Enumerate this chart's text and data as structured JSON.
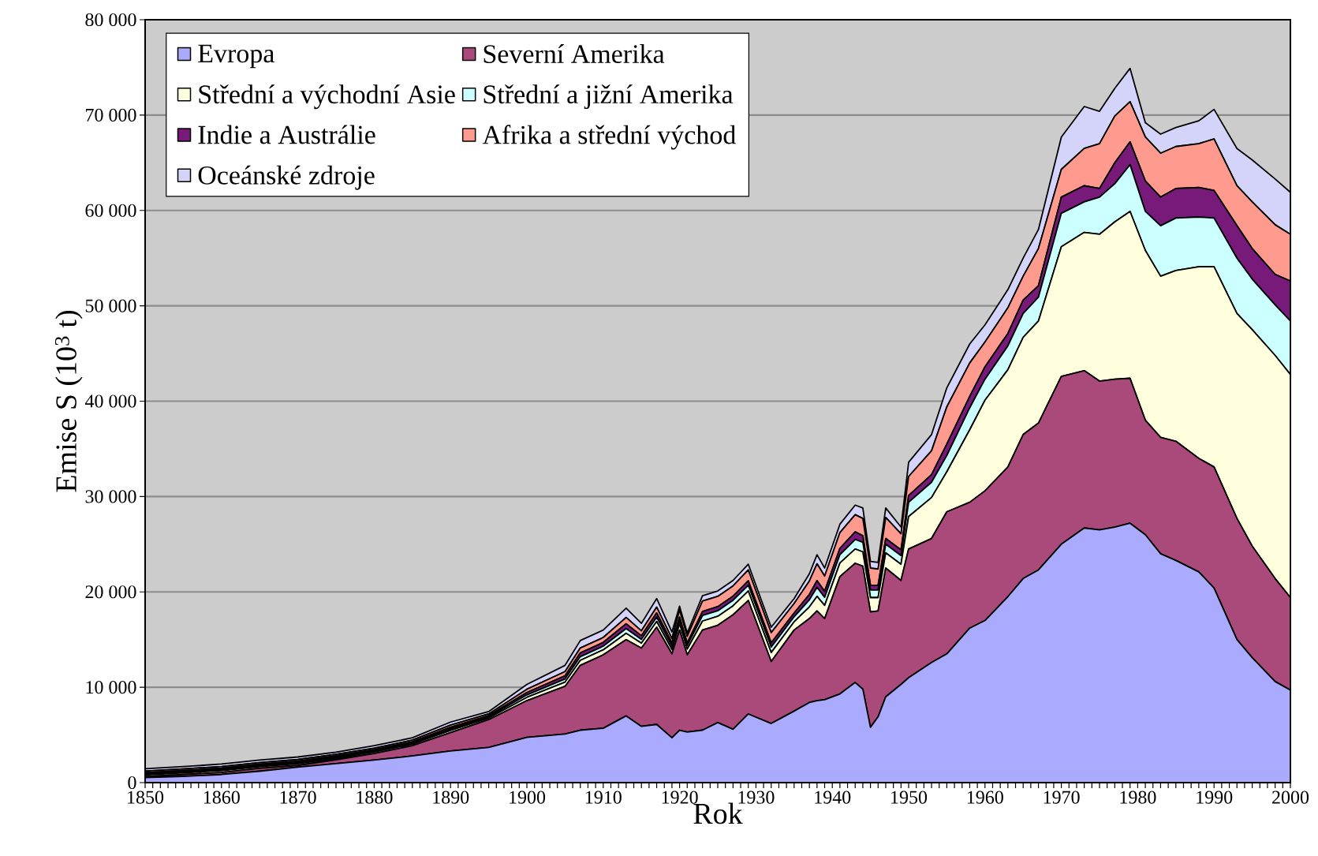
{
  "chart_data": {
    "type": "area",
    "stacked": true,
    "xlabel": "Rok",
    "ylabel": "Emise S (10$^{3}$ t)",
    "x": [
      1850,
      1855,
      1860,
      1865,
      1870,
      1875,
      1880,
      1885,
      1890,
      1895,
      1900,
      1905,
      1907,
      1910,
      1913,
      1915,
      1917,
      1919,
      1920,
      1921,
      1923,
      1925,
      1927,
      1929,
      1932,
      1935,
      1937,
      1938,
      1939,
      1941,
      1943,
      1944,
      1945,
      1946,
      1947,
      1949,
      1950,
      1953,
      1955,
      1958,
      1960,
      1963,
      1965,
      1967,
      1970,
      1973,
      1975,
      1977,
      1979,
      1981,
      1983,
      1985,
      1988,
      1990,
      1993,
      1995,
      1998,
      2000
    ],
    "series": [
      {
        "name": "Evropa",
        "color": "#aaaaff",
        "values": [
          520,
          650,
          850,
          1200,
          1620,
          2000,
          2360,
          2800,
          3320,
          3700,
          4750,
          5100,
          5500,
          5700,
          7000,
          5900,
          6100,
          4700,
          5500,
          5300,
          5500,
          6300,
          5600,
          7200,
          6200,
          7500,
          8400,
          8600,
          8700,
          9300,
          10500,
          9800,
          5800,
          6900,
          9000,
          10300,
          11000,
          12600,
          13500,
          16200,
          17000,
          19500,
          21400,
          22300,
          25000,
          26700,
          26500,
          26800,
          27200,
          26000,
          24000,
          23300,
          22100,
          20400,
          15000,
          13100,
          10600,
          9700
        ]
      },
      {
        "name": "Severní Amerika",
        "color": "#aa4a7b",
        "values": [
          110,
          200,
          220,
          300,
          180,
          400,
          690,
          1070,
          1930,
          2900,
          3850,
          5000,
          6800,
          7700,
          8000,
          8200,
          10200,
          8800,
          10500,
          8100,
          10500,
          10200,
          12000,
          11900,
          6500,
          8500,
          8800,
          9400,
          8500,
          12300,
          12500,
          12900,
          12100,
          11100,
          13500,
          10900,
          13500,
          13000,
          14900,
          13200,
          13600,
          13600,
          15100,
          15400,
          17600,
          16500,
          15600,
          15500,
          15200,
          12000,
          12200,
          12500,
          11900,
          12700,
          12700,
          11700,
          10800,
          9700
        ]
      },
      {
        "name": "Střední a východní Asie",
        "color": "#ffffdd",
        "values": [
          170,
          170,
          180,
          170,
          180,
          160,
          160,
          170,
          220,
          170,
          340,
          440,
          520,
          520,
          660,
          520,
          600,
          460,
          650,
          600,
          940,
          940,
          940,
          990,
          940,
          860,
          1220,
          1530,
          1380,
          1430,
          1500,
          1500,
          1500,
          1400,
          1600,
          1700,
          3400,
          4300,
          4200,
          7600,
          9500,
          10200,
          10200,
          10700,
          13600,
          14500,
          15400,
          16500,
          17500,
          17800,
          16900,
          17900,
          20100,
          21000,
          21500,
          22700,
          23400,
          23400
        ]
      },
      {
        "name": "Střední a jižní Amerika",
        "color": "#ccffff",
        "values": [
          120,
          120,
          130,
          130,
          130,
          120,
          120,
          120,
          170,
          130,
          260,
          330,
          390,
          390,
          500,
          390,
          450,
          350,
          400,
          370,
          580,
          580,
          580,
          610,
          580,
          530,
          750,
          940,
          850,
          880,
          1000,
          1000,
          800,
          800,
          900,
          900,
          1500,
          1600,
          1700,
          2300,
          2200,
          2500,
          2500,
          2500,
          3500,
          3200,
          3900,
          4000,
          4900,
          4100,
          5300,
          5500,
          5200,
          5100,
          5800,
          5300,
          5300,
          5600
        ]
      },
      {
        "name": "Indie a Austrálie",
        "color": "#771a7a",
        "values": [
          120,
          120,
          130,
          130,
          130,
          120,
          120,
          120,
          170,
          130,
          250,
          330,
          390,
          390,
          500,
          390,
          450,
          340,
          300,
          280,
          430,
          430,
          430,
          460,
          430,
          400,
          560,
          710,
          640,
          660,
          800,
          700,
          500,
          500,
          600,
          600,
          700,
          800,
          1200,
          1200,
          1300,
          1300,
          1400,
          1200,
          1700,
          1700,
          900,
          2200,
          2400,
          3200,
          3000,
          3100,
          3100,
          2900,
          3400,
          3200,
          3200,
          4200
        ]
      },
      {
        "name": "Afrika a střední východ",
        "color": "#ff9a8e",
        "values": [
          170,
          170,
          180,
          170,
          180,
          160,
          160,
          170,
          220,
          170,
          340,
          440,
          520,
          520,
          660,
          520,
          600,
          460,
          750,
          690,
          1080,
          1080,
          1080,
          1140,
          1080,
          990,
          1410,
          1770,
          1590,
          1650,
          1800,
          1800,
          1800,
          1700,
          2200,
          1700,
          2000,
          2500,
          3900,
          3500,
          2600,
          2700,
          2500,
          3900,
          2900,
          3900,
          4700,
          4900,
          4200,
          4600,
          4600,
          4400,
          4600,
          5400,
          4200,
          4900,
          5200,
          4900
        ]
      },
      {
        "name": "Oceánské zdroje",
        "color": "#d4d4fa",
        "values": [
          250,
          250,
          260,
          260,
          270,
          230,
          260,
          250,
          320,
          250,
          510,
          660,
          780,
          780,
          980,
          780,
          900,
          690,
          400,
          360,
          570,
          570,
          570,
          600,
          570,
          520,
          760,
          950,
          840,
          880,
          1000,
          1100,
          700,
          700,
          1000,
          700,
          1500,
          1700,
          2000,
          2000,
          1800,
          1900,
          1900,
          2000,
          3400,
          4400,
          3400,
          2900,
          3500,
          1500,
          2000,
          2000,
          2400,
          3100,
          3900,
          4400,
          4800,
          4400
        ]
      }
    ],
    "xlim": [
      1850,
      2000
    ],
    "xticks": [
      1850,
      1860,
      1870,
      1880,
      1890,
      1900,
      1910,
      1920,
      1930,
      1940,
      1950,
      1960,
      1970,
      1980,
      1990,
      2000
    ],
    "ylim": [
      0,
      80000
    ],
    "yticks": [
      0,
      {
        "value": 10000,
        "label": "10 000"
      },
      {
        "value": 20000,
        "label": "20 000"
      },
      {
        "value": 30000,
        "label": "30 000"
      },
      {
        "value": 40000,
        "label": "40 000"
      },
      {
        "value": 50000,
        "label": "50 000"
      },
      {
        "value": 60000,
        "label": "60 000"
      },
      {
        "value": 70000,
        "label": "70 000"
      },
      {
        "value": 80000,
        "label": "80 000"
      }
    ],
    "grid": "y",
    "legend": "top left",
    "marker": "none"
  }
}
